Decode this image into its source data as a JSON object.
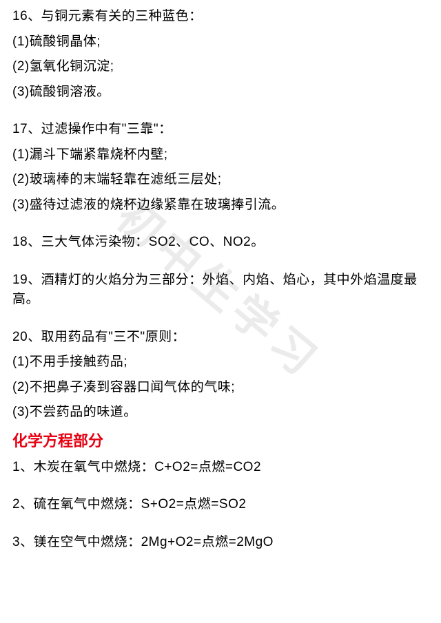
{
  "text_color": "#000000",
  "title_color": "#e60012",
  "background_color": "#ffffff",
  "watermark_color": "rgba(120,120,120,0.15)",
  "font_size_body": 19,
  "font_size_title": 22,
  "watermark": "初中生学习",
  "items": [
    {
      "num": "16",
      "head": "与铜元素有关的三种蓝色：",
      "subs": [
        "(1)硫酸铜晶体;",
        "(2)氢氧化铜沉淀;",
        "(3)硫酸铜溶液。"
      ]
    },
    {
      "num": "17",
      "head": "过滤操作中有\"三靠\"：",
      "subs": [
        "(1)漏斗下端紧靠烧杯内壁;",
        "(2)玻璃棒的末端轻靠在滤纸三层处;",
        "(3)盛待过滤液的烧杯边缘紧靠在玻璃捧引流。"
      ]
    },
    {
      "num": "18",
      "head": "三大气体污染物：SO2、CO、NO2。",
      "subs": []
    },
    {
      "num": "19",
      "head": "酒精灯的火焰分为三部分：外焰、内焰、焰心，其中外焰温度最高。",
      "subs": []
    },
    {
      "num": "20",
      "head": "取用药品有\"三不\"原则：",
      "subs": [
        "(1)不用手接触药品;",
        "(2)不把鼻子凑到容器口闻气体的气味;",
        "(3)不尝药品的味道。"
      ]
    }
  ],
  "section_title": "化学方程部分",
  "equations": [
    {
      "num": "1",
      "text": "木炭在氧气中燃烧：C+O2=点燃=CO2"
    },
    {
      "num": "2",
      "text": "硫在氧气中燃烧：S+O2=点燃=SO2"
    },
    {
      "num": "3",
      "text": "镁在空气中燃烧：2Mg+O2=点燃=2MgO"
    }
  ]
}
